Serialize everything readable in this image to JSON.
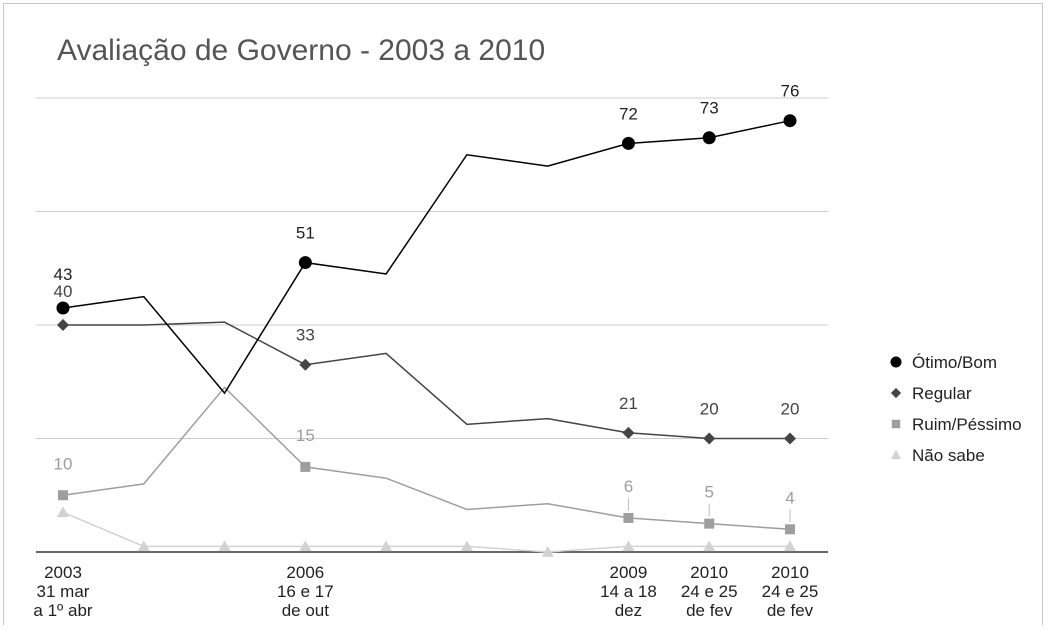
{
  "chart_data": {
    "type": "line",
    "title": "Avaliação de Governo - 2003 a 2010",
    "xlabel": "",
    "ylabel": "",
    "ylim": [
      0,
      80
    ],
    "grid": true,
    "legend_position": "right",
    "x_slots": 10,
    "categories": [
      [
        "2003",
        "31 mar",
        "a 1º abr"
      ],
      [],
      [],
      [
        "2006",
        "16 e 17",
        "de out"
      ],
      [],
      [],
      [],
      [
        "2009",
        "14 a 18",
        "dez"
      ],
      [
        "2010",
        "24 e 25",
        "de fev"
      ],
      [
        "2010",
        "24 e 25",
        "de fev"
      ]
    ],
    "series": [
      {
        "name": "Ótimo/Bom",
        "color": "#000000",
        "marker": "circle",
        "x": [
          0,
          1,
          2,
          3,
          4,
          5,
          6,
          7,
          8,
          9
        ],
        "values": [
          43,
          45,
          28,
          51,
          49,
          70,
          68,
          72,
          73,
          76
        ],
        "labels": [
          "43",
          "",
          "",
          "51",
          "",
          "",
          "",
          "72",
          "73",
          "76"
        ]
      },
      {
        "name": "Regular",
        "color": "#444444",
        "marker": "diamond",
        "x": [
          0,
          1,
          2,
          3,
          4,
          5,
          6,
          7,
          8,
          9
        ],
        "values": [
          40,
          40,
          40.5,
          33,
          35,
          22.5,
          23.5,
          21,
          20,
          20
        ],
        "labels": [
          "40",
          "",
          "",
          "33",
          "",
          "",
          "",
          "21",
          "20",
          "20"
        ]
      },
      {
        "name": "Ruim/Péssimo",
        "color": "#9e9e9e",
        "marker": "square",
        "x": [
          0,
          1,
          2,
          3,
          4,
          5,
          6,
          7,
          8,
          9
        ],
        "values": [
          10,
          12,
          29,
          15,
          13,
          7.5,
          8.5,
          6,
          5,
          4
        ],
        "labels": [
          "10",
          "",
          "",
          "15",
          "",
          "",
          "",
          "6",
          "5",
          "4"
        ]
      },
      {
        "name": "Não sabe",
        "color": "#d2d2d2",
        "marker": "triangle",
        "x": [
          0,
          1,
          2,
          3,
          4,
          5,
          6,
          7,
          8,
          9
        ],
        "values": [
          7,
          1,
          1,
          1,
          1,
          1,
          0,
          1,
          1,
          1
        ],
        "labels": [
          "",
          "",
          "",
          "",
          "",
          "",
          "",
          "",
          "",
          ""
        ]
      }
    ]
  }
}
